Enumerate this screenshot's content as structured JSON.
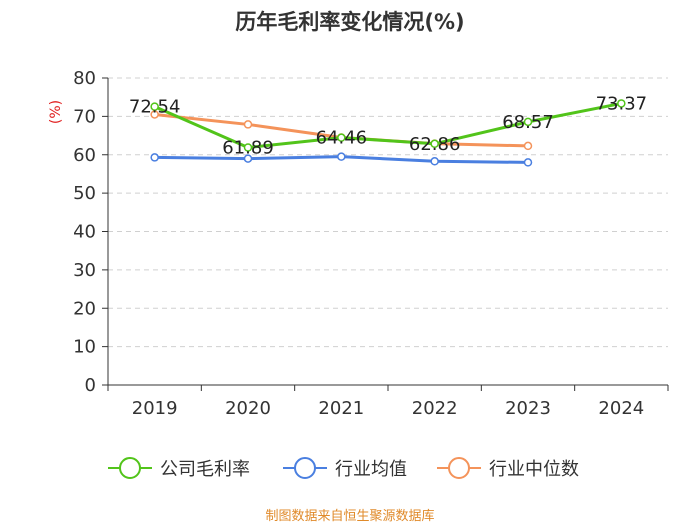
{
  "chart_data": {
    "type": "line",
    "title": "历年毛利率变化情况(%)",
    "ylabel": "(%)",
    "xlabel": "",
    "categories": [
      "2019",
      "2020",
      "2021",
      "2022",
      "2023",
      "2024"
    ],
    "ylim": [
      0,
      80
    ],
    "yticks": [
      0,
      10,
      20,
      30,
      40,
      50,
      60,
      70,
      80
    ],
    "grid": "horizontal-dashed",
    "legend_position": "bottom",
    "series": [
      {
        "name": "公司毛利率",
        "color": "#52c41a",
        "values": [
          72.54,
          61.89,
          64.46,
          62.86,
          68.57,
          73.37
        ],
        "labels": [
          "72.54",
          "61.89",
          "64.46",
          "62.86",
          "68.57",
          "73.37"
        ]
      },
      {
        "name": "行业均值",
        "color": "#4a7fe0",
        "values": [
          59.3,
          59.0,
          59.5,
          58.3,
          58.0,
          null
        ]
      },
      {
        "name": "行业中位数",
        "color": "#f4935a",
        "values": [
          70.5,
          67.9,
          64.5,
          62.9,
          62.3,
          null
        ]
      }
    ]
  },
  "source": "制图数据来自恒生聚源数据库"
}
